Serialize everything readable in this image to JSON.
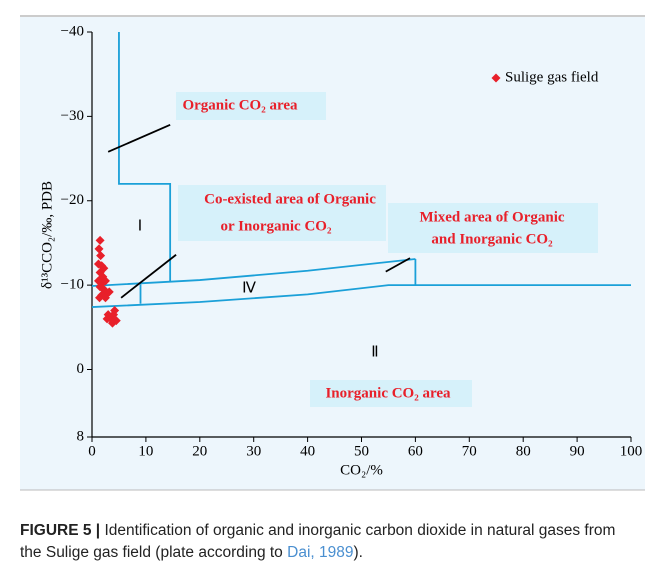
{
  "chart_data": {
    "type": "scatter",
    "xlabel": "CO₂/%",
    "ylabel": "δ¹³CCO₂/‰, PDB",
    "xlim": [
      0,
      100
    ],
    "ylim": [
      -40,
      8
    ],
    "y_reversed": true,
    "xticks": [
      0,
      10,
      20,
      30,
      40,
      50,
      60,
      70,
      80,
      90,
      100
    ],
    "yticks": [
      {
        "value": -40,
        "label": "−40"
      },
      {
        "value": -30,
        "label": "−30"
      },
      {
        "value": -20,
        "label": "−20"
      },
      {
        "value": -10,
        "label": "−10"
      },
      0,
      8
    ],
    "series": [
      {
        "name": "Sulige gas field",
        "color": "#e8202a",
        "x": [
          1.5,
          1.3,
          1.6,
          1.2,
          1.8,
          2.2,
          1.5,
          2.0,
          1.2,
          1.8,
          2.5,
          1.5,
          2.2,
          2.8,
          1.8,
          3.2,
          1.4,
          2.5,
          3.0,
          3.5,
          4.0,
          4.5,
          3.8,
          2.8,
          4.2
        ],
        "values": [
          -15.3,
          -14.3,
          -13.5,
          -12.5,
          -12.3,
          -12.0,
          -11.5,
          -11.0,
          -10.5,
          -10.2,
          -10.5,
          -9.8,
          -9.5,
          -9.0,
          -8.8,
          -9.2,
          -8.5,
          -8.5,
          -6.5,
          -6.0,
          -6.5,
          -5.8,
          -5.5,
          -6.0,
          -7.0
        ]
      }
    ],
    "legend": "upper right",
    "boundaries": [
      {
        "color": "#1ba0d8",
        "x": [
          5,
          5,
          14.5,
          14.5
        ],
        "y": [
          -40,
          -22,
          -22,
          -10.4
        ]
      },
      {
        "color": "#1ba0d8",
        "x": [
          0,
          20,
          40,
          60
        ],
        "y": [
          -9.9,
          -10.6,
          -11.7,
          -13.1
        ]
      },
      {
        "color": "#1ba0d8",
        "x": [
          0,
          20,
          40,
          55,
          100
        ],
        "y": [
          -7.4,
          -8.0,
          -8.9,
          -10.0,
          -10.0
        ]
      },
      {
        "color": "#1ba0d8",
        "x": [
          9,
          9
        ],
        "y": [
          -7.8,
          -10.1
        ]
      },
      {
        "color": "#1ba0d8",
        "x": [
          60,
          60
        ],
        "y": [
          -10.0,
          -13.1
        ]
      },
      {
        "color": "#000000",
        "x": [
          3,
          14.5
        ],
        "y": [
          -25.8,
          -29.0
        ]
      },
      {
        "color": "#000000",
        "x": [
          5.4,
          15.6
        ],
        "y": [
          -8.5,
          -13.6
        ]
      },
      {
        "color": "#000000",
        "x": [
          54.5,
          59
        ],
        "y": [
          -11.6,
          -13.2
        ]
      }
    ],
    "annotations": [
      "Organic CO₂ area",
      "Co-existed area of Organic",
      "or Inorganic CO₂",
      "Mixed area of Organic",
      "and Inorganic CO₂",
      "Inorganic CO₂ area"
    ],
    "region_labels": [
      "Ⅰ",
      "Ⅳ",
      "Ⅱ"
    ]
  },
  "caption": {
    "label": "FIGURE 5 |",
    "text": " Identification of organic and inorganic carbon dioxide in natural gases from the Sulige gas field (plate according to ",
    "link": "Dai, 1989",
    "end": ")."
  }
}
